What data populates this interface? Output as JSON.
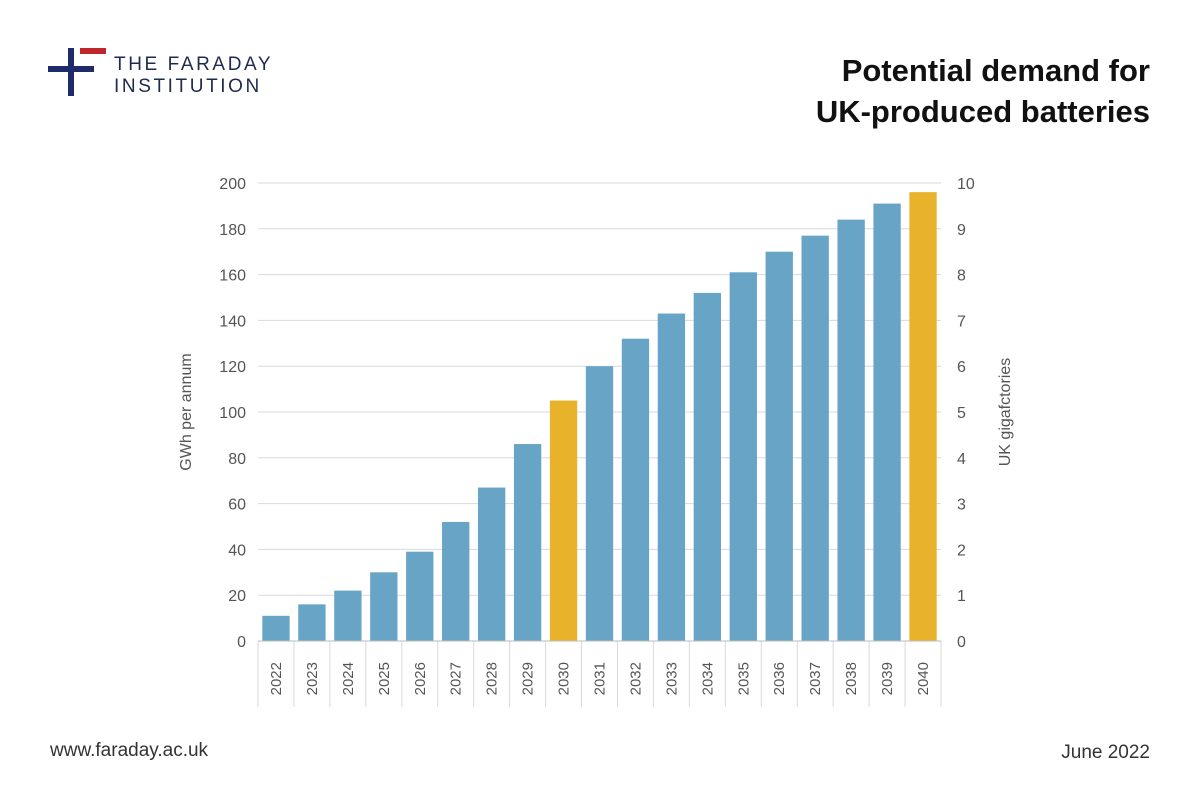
{
  "logo": {
    "line1": "THE FARADAY",
    "line2": "INSTITUTION",
    "colors": {
      "cross": "#1f2a6b",
      "bar": "#c0272d"
    }
  },
  "header": {
    "title_line1": "Potential demand for",
    "title_line2": "UK-produced batteries"
  },
  "footer": {
    "url": "www.faraday.ac.uk",
    "date": "June 2022"
  },
  "chart_data": {
    "type": "bar",
    "categories": [
      "2022",
      "2023",
      "2024",
      "2025",
      "2026",
      "2027",
      "2028",
      "2029",
      "2030",
      "2031",
      "2032",
      "2033",
      "2034",
      "2035",
      "2036",
      "2037",
      "2038",
      "2039",
      "2040"
    ],
    "values": [
      11,
      16,
      22,
      30,
      39,
      52,
      67,
      86,
      105,
      120,
      132,
      143,
      152,
      161,
      170,
      177,
      184,
      191,
      196
    ],
    "highlighted": [
      "2030",
      "2040"
    ],
    "ylabel": "GWh per annum",
    "ylabel_right": "UK gigafctories",
    "ylim": [
      0,
      200
    ],
    "yticks": [
      0,
      20,
      40,
      60,
      80,
      100,
      120,
      140,
      160,
      180,
      200
    ],
    "ylim_right": [
      0,
      10
    ],
    "yticks_right": [
      0,
      1,
      2,
      3,
      4,
      5,
      6,
      7,
      8,
      9,
      10
    ],
    "grid": true,
    "colors": {
      "bar": "#67a4c5",
      "highlight": "#e8b22a",
      "grid": "#d9d9d9"
    }
  }
}
